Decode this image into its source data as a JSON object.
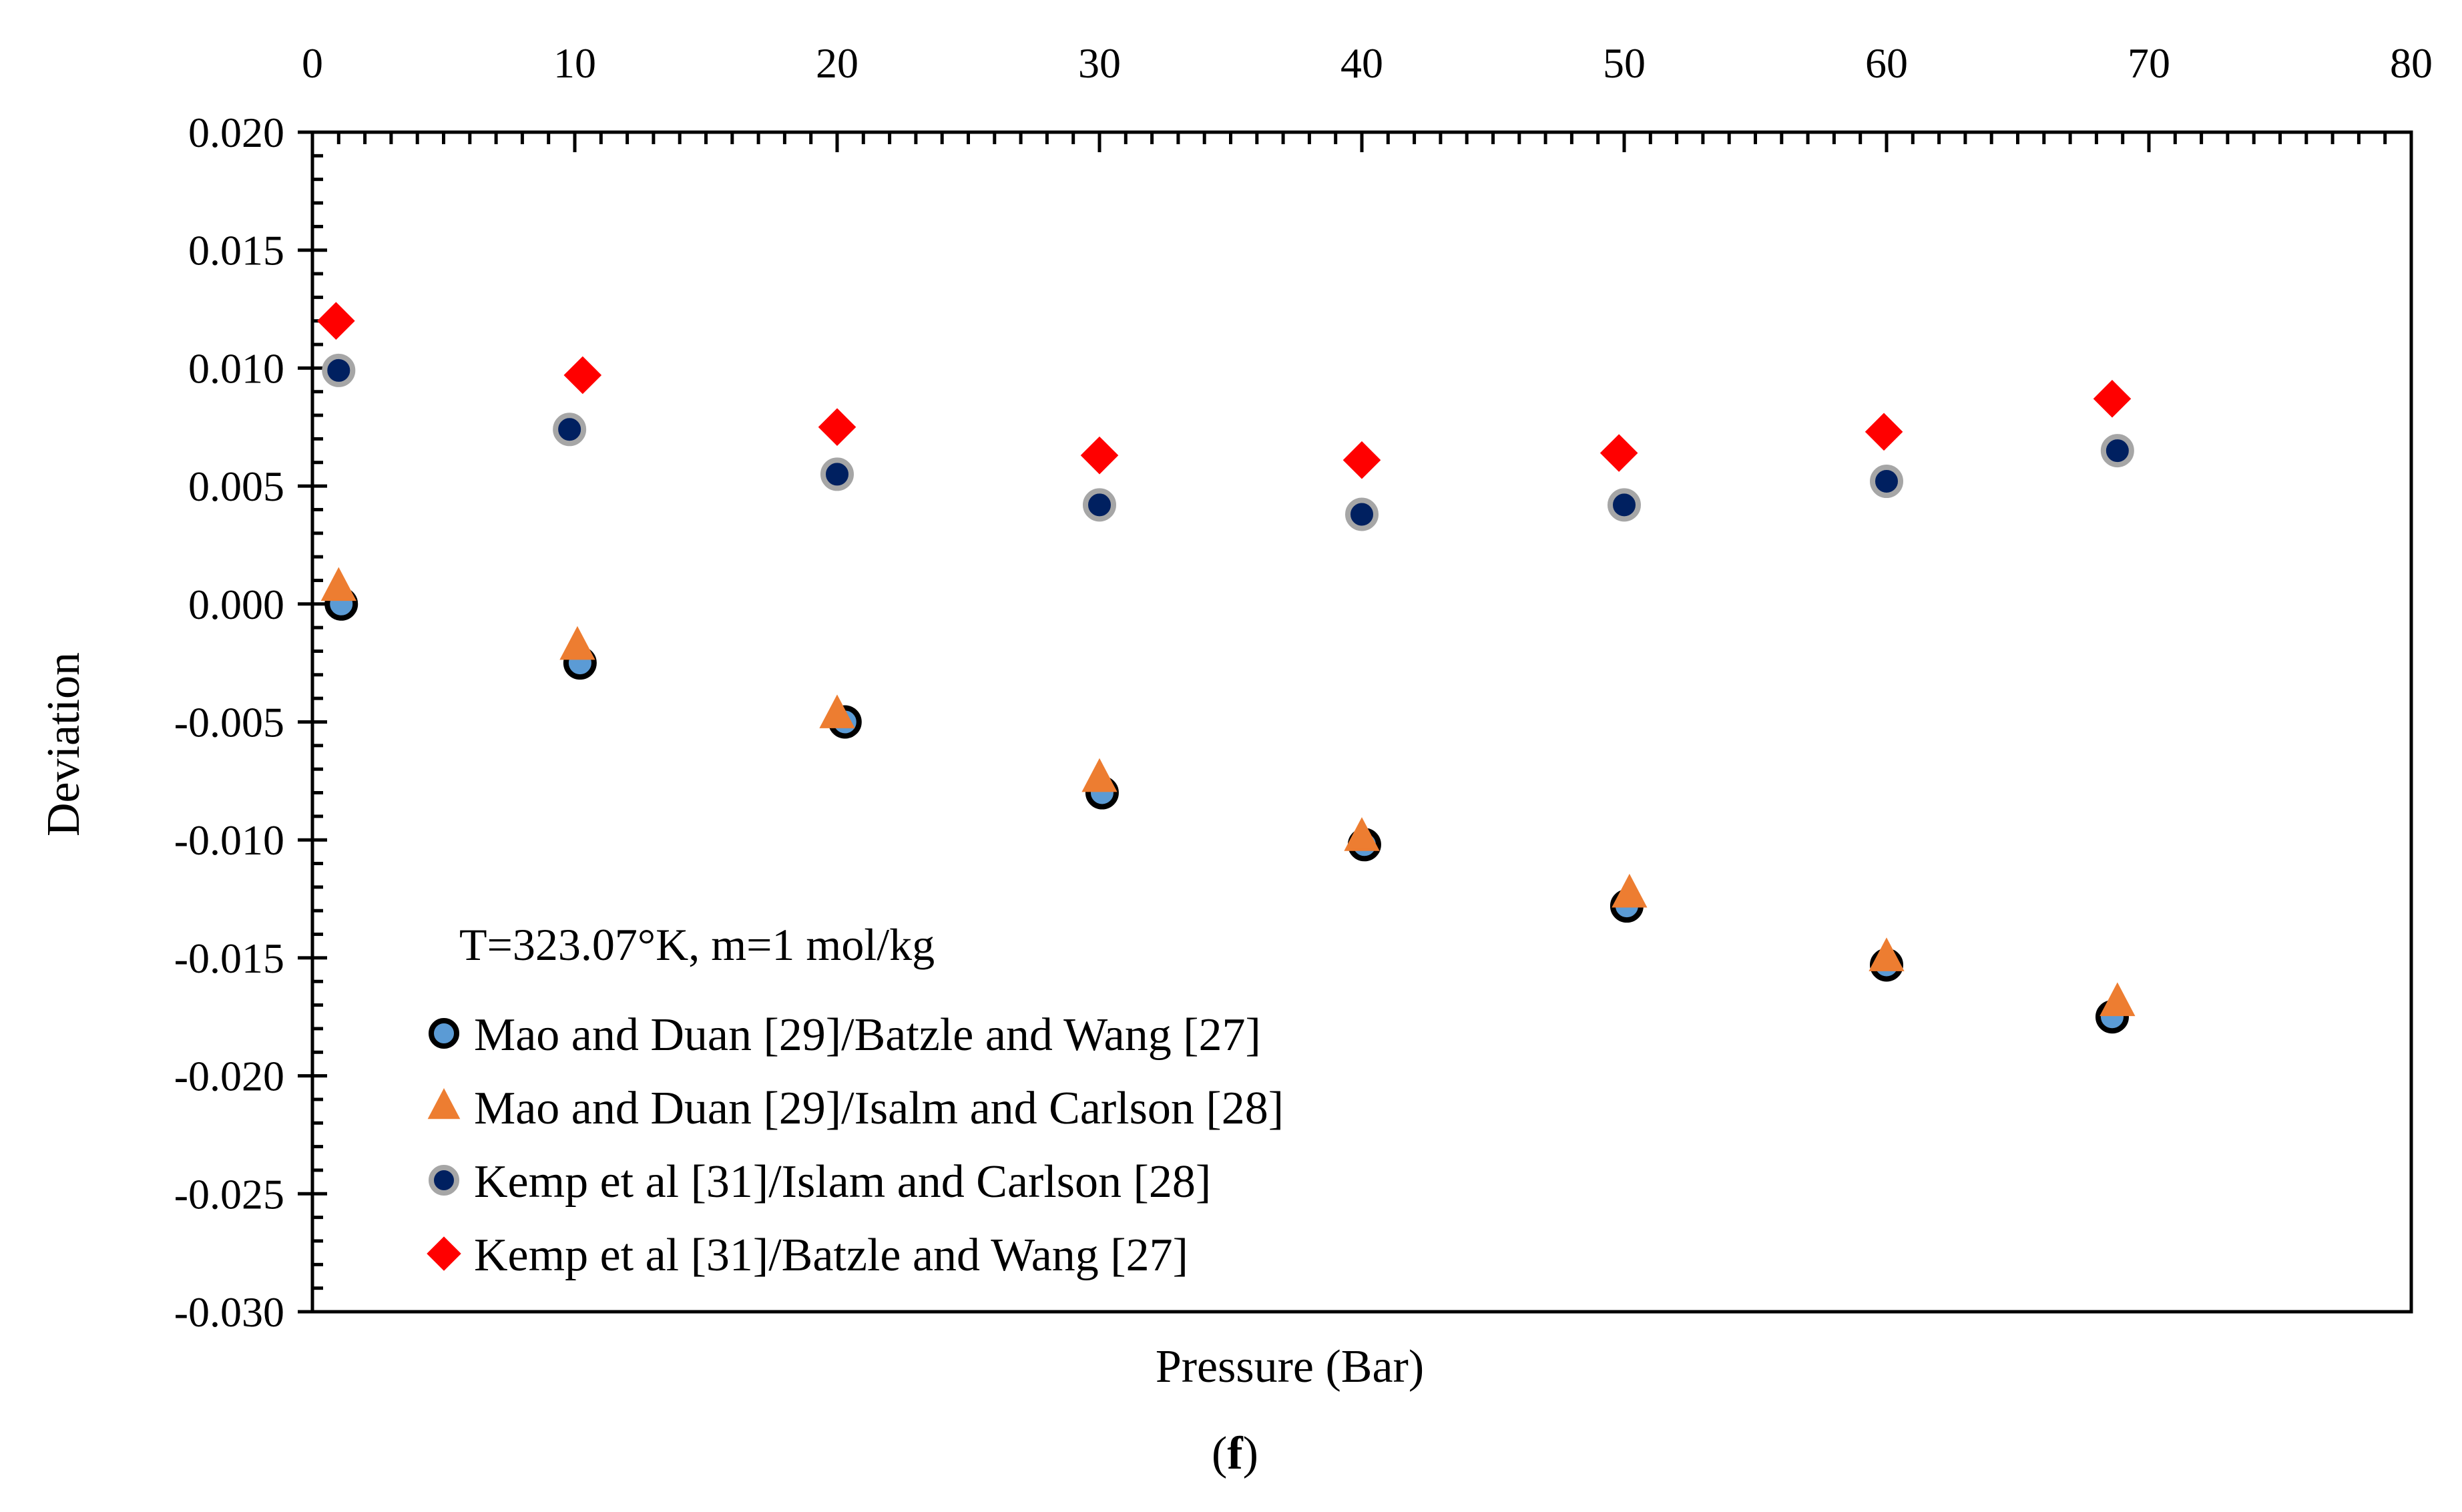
{
  "chart_data": {
    "type": "scatter",
    "title": "",
    "xlabel": "Pressure (Bar)",
    "ylabel": "Deviation",
    "caption_open": "(",
    "caption_letter": "f",
    "caption_close": ")",
    "annotation": "T=323.07°K, m=1 mol/kg",
    "xlim": [
      0,
      80
    ],
    "ylim": [
      -0.03,
      0.02
    ],
    "x_ticks": [
      0,
      10,
      20,
      30,
      40,
      50,
      60,
      70,
      80
    ],
    "x_tick_labels": [
      "0",
      "10",
      "20",
      "30",
      "40",
      "50",
      "60",
      "70",
      "80"
    ],
    "y_ticks": [
      0.02,
      0.015,
      0.01,
      0.005,
      0.0,
      -0.005,
      -0.01,
      -0.015,
      -0.02,
      -0.025,
      -0.03
    ],
    "y_tick_labels": [
      "0.020",
      "0.015",
      "0.010",
      "0.005",
      "0.000",
      "-0.005",
      "-0.010",
      "-0.015",
      "-0.020",
      "-0.025",
      "-0.030"
    ],
    "x_axis_position": "top",
    "grid": false,
    "legend_position": "bottom-left",
    "series": [
      {
        "name": "Mao and Duan [29]/Batzle and Wang [27]",
        "marker": "circle",
        "color": "#5b9bd5",
        "edge_color": "#000000",
        "x": [
          1.1,
          10.2,
          20.3,
          30.1,
          40.1,
          50.1,
          60.0,
          68.6
        ],
        "y": [
          0.0,
          -0.0025,
          -0.005,
          -0.008,
          -0.0102,
          -0.0128,
          -0.0153,
          -0.0175
        ]
      },
      {
        "name": "Mao and Duan [29]/Isalm and Carlson [28]",
        "marker": "triangle",
        "color": "#ed7d31",
        "edge_color": "#ed7d31",
        "x": [
          1.0,
          10.1,
          20.0,
          30.0,
          40.0,
          50.2,
          60.0,
          68.8
        ],
        "y": [
          0.0007,
          -0.0018,
          -0.0047,
          -0.0074,
          -0.0099,
          -0.0123,
          -0.015,
          -0.0169
        ]
      },
      {
        "name": "Kemp et al [31]/Islam and Carlson [28]",
        "marker": "circle",
        "color": "#002060",
        "edge_color": "#a6a6a6",
        "x": [
          1.0,
          9.8,
          20.0,
          30.0,
          40.0,
          50.0,
          60.0,
          68.8
        ],
        "y": [
          0.0099,
          0.0074,
          0.0055,
          0.0042,
          0.0038,
          0.0042,
          0.0052,
          0.0065
        ]
      },
      {
        "name": "Kemp et al [31]/Batzle and Wang [27]",
        "marker": "diamond",
        "color": "#ff0000",
        "edge_color": "#ff0000",
        "x": [
          0.9,
          10.3,
          20.0,
          30.0,
          40.0,
          49.8,
          59.9,
          68.6
        ],
        "y": [
          0.012,
          0.0097,
          0.0075,
          0.0063,
          0.0061,
          0.0064,
          0.0073,
          0.0087
        ]
      }
    ]
  }
}
